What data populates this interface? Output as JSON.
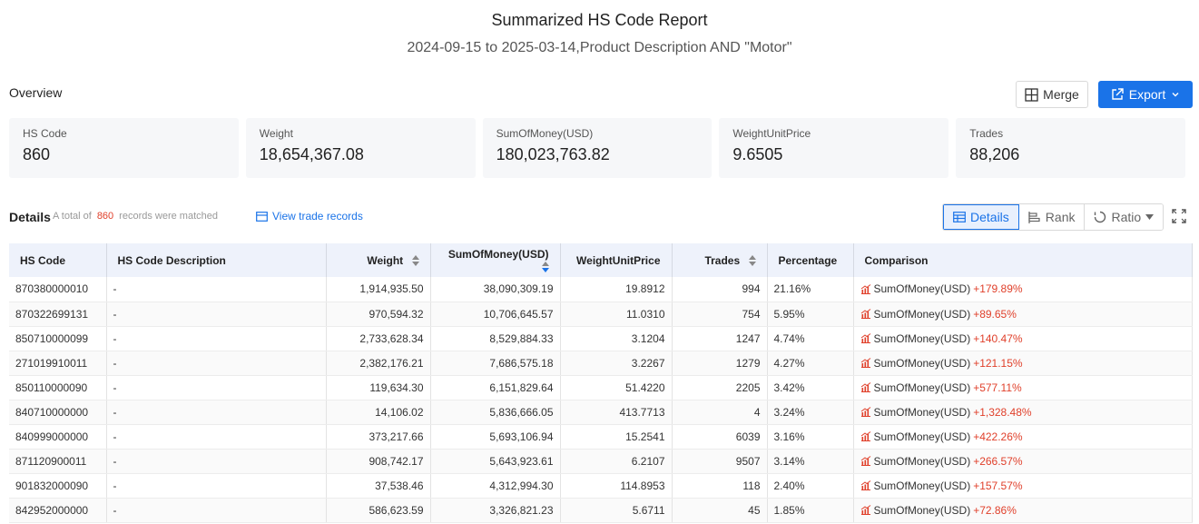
{
  "header": {
    "title": "Summarized HS Code Report",
    "subtitle": "2024-09-15 to 2025-03-14,Product Description AND \"Motor\""
  },
  "overview": {
    "label": "Overview",
    "merge_label": "Merge",
    "export_label": "Export",
    "cards": [
      {
        "label": "HS Code",
        "value": "860"
      },
      {
        "label": "Weight",
        "value": "18,654,367.08"
      },
      {
        "label": "SumOfMoney(USD)",
        "value": "180,023,763.82"
      },
      {
        "label": "WeightUnitPrice",
        "value": "9.6505"
      },
      {
        "label": "Trades",
        "value": "88,206"
      }
    ]
  },
  "details": {
    "title": "Details",
    "total_prefix": "A total of",
    "total_count": "860",
    "total_suffix": "records were matched",
    "view_link": "View trade records",
    "views": {
      "details": "Details",
      "rank": "Rank",
      "ratio": "Ratio"
    }
  },
  "table": {
    "columns": [
      "HS Code",
      "HS Code Description",
      "Weight",
      "SumOfMoney(USD)",
      "WeightUnitPrice",
      "Trades",
      "Percentage",
      "Comparison"
    ],
    "rows": [
      {
        "code": "870380000010",
        "desc": "-",
        "weight": "1,914,935.50",
        "money": "38,090,309.19",
        "unit": "19.8912",
        "trades": "994",
        "pct": "21.16%",
        "cmp_label": "SumOfMoney(USD)",
        "cmp_value": "+179.89%"
      },
      {
        "code": "870322699131",
        "desc": "-",
        "weight": "970,594.32",
        "money": "10,706,645.57",
        "unit": "11.0310",
        "trades": "754",
        "pct": "5.95%",
        "cmp_label": "SumOfMoney(USD)",
        "cmp_value": "+89.65%"
      },
      {
        "code": "850710000099",
        "desc": "-",
        "weight": "2,733,628.34",
        "money": "8,529,884.33",
        "unit": "3.1204",
        "trades": "1247",
        "pct": "4.74%",
        "cmp_label": "SumOfMoney(USD)",
        "cmp_value": "+140.47%"
      },
      {
        "code": "271019910011",
        "desc": "-",
        "weight": "2,382,176.21",
        "money": "7,686,575.18",
        "unit": "3.2267",
        "trades": "1279",
        "pct": "4.27%",
        "cmp_label": "SumOfMoney(USD)",
        "cmp_value": "+121.15%"
      },
      {
        "code": "850110000090",
        "desc": "-",
        "weight": "119,634.30",
        "money": "6,151,829.64",
        "unit": "51.4220",
        "trades": "2205",
        "pct": "3.42%",
        "cmp_label": "SumOfMoney(USD)",
        "cmp_value": "+577.11%"
      },
      {
        "code": "840710000000",
        "desc": "-",
        "weight": "14,106.02",
        "money": "5,836,666.05",
        "unit": "413.7713",
        "trades": "4",
        "pct": "3.24%",
        "cmp_label": "SumOfMoney(USD)",
        "cmp_value": "+1,328.48%"
      },
      {
        "code": "840999000000",
        "desc": "-",
        "weight": "373,217.66",
        "money": "5,693,106.94",
        "unit": "15.2541",
        "trades": "6039",
        "pct": "3.16%",
        "cmp_label": "SumOfMoney(USD)",
        "cmp_value": "+422.26%"
      },
      {
        "code": "871120900011",
        "desc": "-",
        "weight": "908,742.17",
        "money": "5,643,923.61",
        "unit": "6.2107",
        "trades": "9507",
        "pct": "3.14%",
        "cmp_label": "SumOfMoney(USD)",
        "cmp_value": "+266.57%"
      },
      {
        "code": "901832000090",
        "desc": "-",
        "weight": "37,538.46",
        "money": "4,312,994.30",
        "unit": "114.8953",
        "trades": "118",
        "pct": "2.40%",
        "cmp_label": "SumOfMoney(USD)",
        "cmp_value": "+157.57%"
      },
      {
        "code": "842952000000",
        "desc": "-",
        "weight": "586,623.59",
        "money": "3,326,821.23",
        "unit": "5.6711",
        "trades": "45",
        "pct": "1.85%",
        "cmp_label": "SumOfMoney(USD)",
        "cmp_value": "+72.86%"
      }
    ]
  },
  "colors": {
    "accent": "#1a73e8",
    "positive": "#e0402b",
    "header_bg": "#eef2fb"
  }
}
